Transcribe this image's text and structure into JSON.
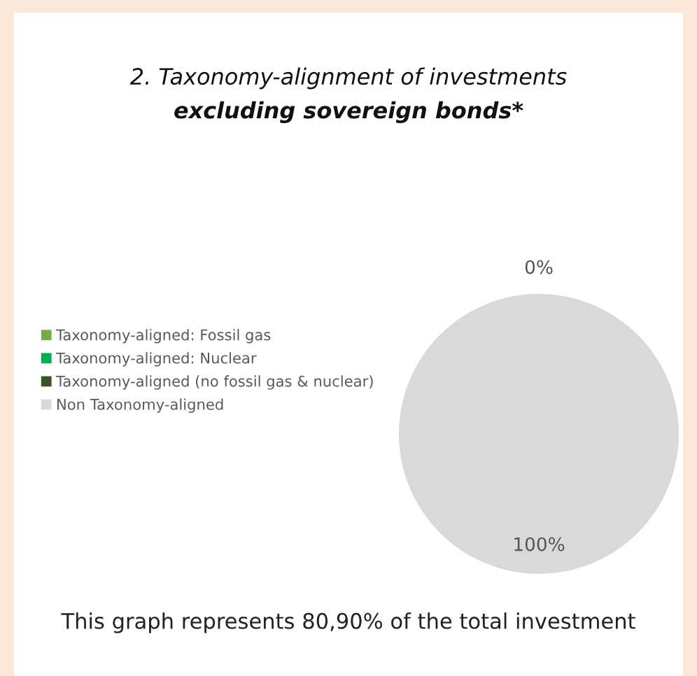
{
  "chart_data": {
    "type": "pie",
    "title": "2. Taxonomy-alignment of investments",
    "subtitle": "excluding sovereign bonds*",
    "categories": [
      "Taxonomy-aligned: Fossil gas",
      "Taxonomy-aligned: Nuclear",
      "Taxonomy-aligned (no fossil gas & nuclear)",
      "Non Taxonomy-aligned"
    ],
    "values": [
      0,
      0,
      0,
      100
    ],
    "colors": [
      "#70ad47",
      "#00b050",
      "#375623",
      "#d9d9d9"
    ],
    "value_labels": [
      "0%",
      null,
      null,
      "100%"
    ],
    "legend": "left",
    "annotations": [
      "This graph represents 80,90% of the total investment"
    ]
  }
}
